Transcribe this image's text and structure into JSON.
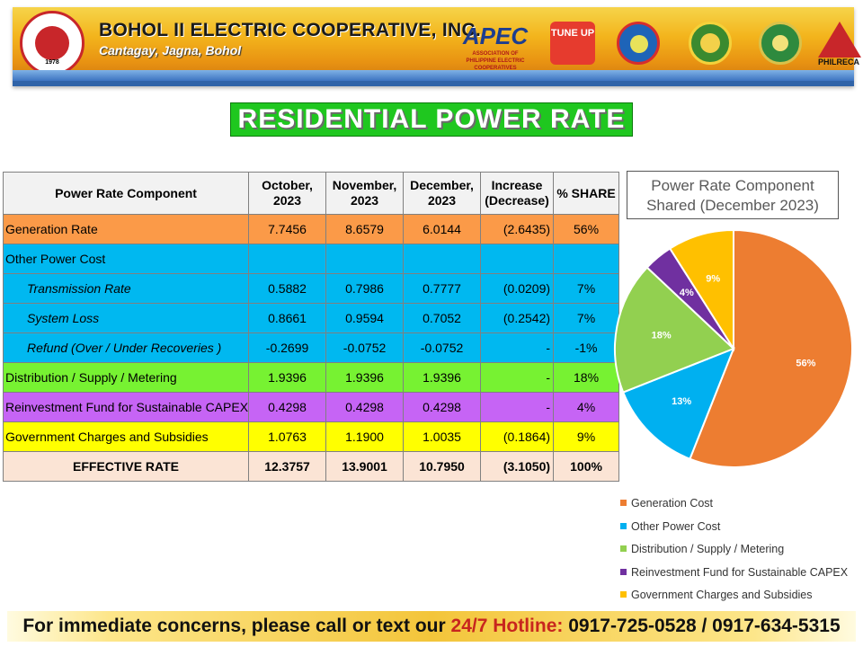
{
  "header": {
    "cooperative_name": "BOHOL II ELECTRIC COOPERATIVE, INC.",
    "address": "Cantagay, Jagna, Bohol",
    "logo_year": "1978",
    "logos": {
      "apec": "APEC",
      "apec_sub": "ASSOCIATION OF PHILIPPINE ELECTRIC COOPERATIVES",
      "tune_up": "TUNE UP",
      "philreca": "PHILRECA"
    }
  },
  "title": "RESIDENTIAL POWER RATE",
  "table": {
    "headers": [
      "Power Rate Component",
      "October, 2023",
      "November, 2023",
      "December, 2023",
      "Increase (Decrease)",
      "% SHARE"
    ],
    "rows": {
      "generation": {
        "label": "Generation Rate",
        "oct": "7.7456",
        "nov": "8.6579",
        "dec": "6.0144",
        "inc": "(2.6435)",
        "share": "56%"
      },
      "other": {
        "label": "Other Power Cost",
        "oct": "",
        "nov": "",
        "dec": "",
        "inc": "",
        "share": ""
      },
      "transmission": {
        "label": "Transmission Rate",
        "oct": "0.5882",
        "nov": "0.7986",
        "dec": "0.7777",
        "inc": "(0.0209)",
        "share": "7%"
      },
      "system_loss": {
        "label": "System Loss",
        "oct": "0.8661",
        "nov": "0.9594",
        "dec": "0.7052",
        "inc": "(0.2542)",
        "share": "7%"
      },
      "refund": {
        "label": "Refund (Over / Under Recoveries )",
        "oct": "-0.2699",
        "nov": "-0.0752",
        "dec": "-0.0752",
        "inc": "-",
        "share": "-1%"
      },
      "distribution": {
        "label": "Distribution / Supply / Metering",
        "oct": "1.9396",
        "nov": "1.9396",
        "dec": "1.9396",
        "inc": "-",
        "share": "18%"
      },
      "reinvestment": {
        "label": "Reinvestment Fund for Sustainable CAPEX",
        "oct": "0.4298",
        "nov": "0.4298",
        "dec": "0.4298",
        "inc": "-",
        "share": "4%"
      },
      "government": {
        "label": "Government Charges and Subsidies",
        "oct": "1.0763",
        "nov": "1.1900",
        "dec": "1.0035",
        "inc": "(0.1864)",
        "share": "9%"
      },
      "effective": {
        "label": "EFFECTIVE RATE",
        "oct": "12.3757",
        "nov": "13.9001",
        "dec": "10.7950",
        "inc": "(3.1050)",
        "share": "100%"
      }
    }
  },
  "chart_data": {
    "type": "pie",
    "title": "Power Rate Component Shared (December 2023)",
    "categories": [
      "Generation Cost",
      "Other Power Cost",
      "Distribution / Supply / Metering",
      "Reinvestment Fund for Sustainable CAPEX",
      "Government Charges and Subsidies"
    ],
    "values": [
      56,
      13,
      18,
      4,
      9
    ],
    "labels": [
      "56%",
      "13%",
      "18%",
      "4%",
      "9%"
    ],
    "colors": [
      "#ED7D31",
      "#00B0F0",
      "#92D050",
      "#7030A0",
      "#FFC000"
    ],
    "legend_position": "bottom"
  },
  "footer": {
    "lead": "For immediate concerns, please call or text our ",
    "hotline": "24/7 Hotline:",
    "numbers": " 0917-725-0528 / 0917-634-5315"
  }
}
